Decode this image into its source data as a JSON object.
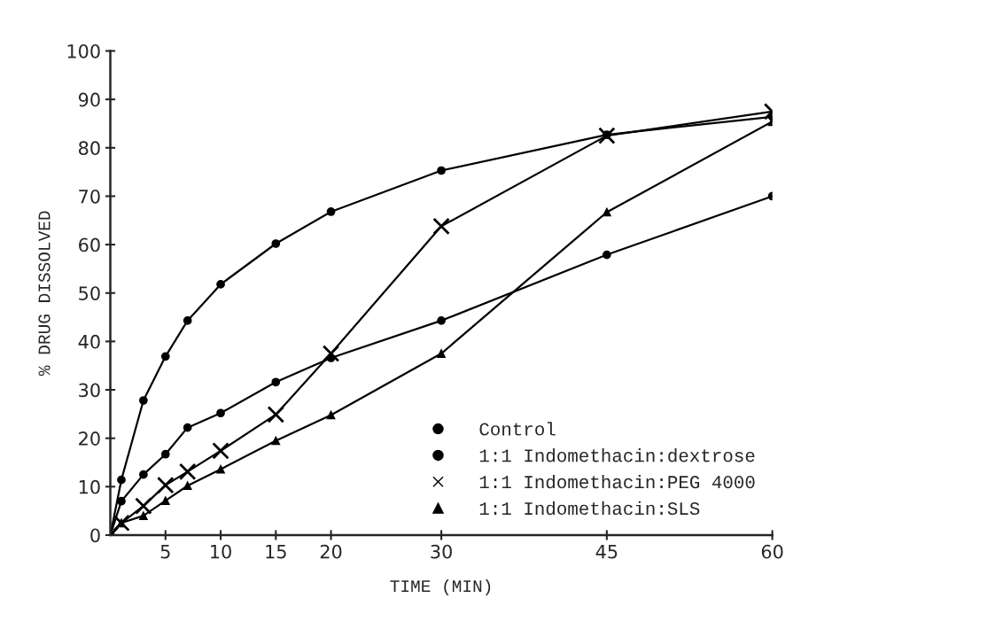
{
  "chart_data": {
    "type": "line",
    "xlabel": "TIME (MIN)",
    "ylabel": "% DRUG DISSOLVED",
    "x": [
      0,
      1,
      3,
      5,
      7,
      10,
      15,
      20,
      30,
      45,
      60
    ],
    "series": [
      {
        "name": "Control",
        "color": "#000000",
        "marker": "circle",
        "values": [
          0,
          7.0,
          12.5,
          16.7,
          22.2,
          25.2,
          31.6,
          36.6,
          44.3,
          57.9,
          70
        ]
      },
      {
        "name": "1:1 Indomethacin:dextrose",
        "color": "#000000",
        "marker": "circle",
        "values": [
          0,
          11.4,
          27.8,
          36.9,
          44.3,
          51.8,
          60.2,
          66.8,
          75.3,
          82.7,
          86.4
        ]
      },
      {
        "name": "1:1 Indomethacin:PEG 4000",
        "color": "#000000",
        "marker": "cross",
        "values": [
          0,
          2.5,
          6.0,
          10.3,
          13.1,
          17.4,
          24.9,
          37.5,
          63.8,
          82.5,
          87.5
        ]
      },
      {
        "name": "1:1 Indomethacin:SLS",
        "color": "#000000",
        "marker": "triangle",
        "values": [
          0,
          2.5,
          4.0,
          7.1,
          10.2,
          13.6,
          19.5,
          24.8,
          37.5,
          66.7,
          85.4
        ]
      }
    ],
    "xlim": [
      0,
      60
    ],
    "xticks": [
      5,
      10,
      15,
      20,
      30,
      45,
      60
    ],
    "ylim": [
      0,
      100
    ],
    "yticks": [
      0,
      10,
      20,
      30,
      40,
      50,
      60,
      70,
      80,
      90,
      100
    ],
    "grid": false,
    "legend": "lower right",
    "line_style": "solid"
  }
}
